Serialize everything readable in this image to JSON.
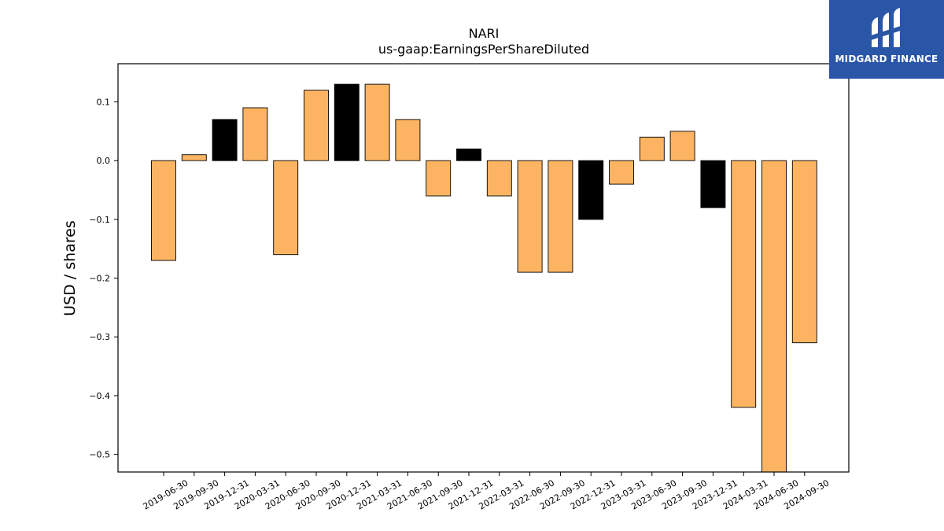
{
  "brand": {
    "name": "MIDGARD FINANCE",
    "logo_bg": "#2a56a8",
    "icon": "midgard-logo-icon"
  },
  "chart_data": {
    "type": "bar",
    "title": "NARI",
    "subtitle": "us-gaap:EarningsPerShareDiluted",
    "xlabel": "",
    "ylabel": "USD / shares",
    "ylim": [
      -0.53,
      0.165
    ],
    "yticks": [
      0.1,
      0.0,
      -0.1,
      -0.2,
      -0.3,
      -0.4,
      -0.5
    ],
    "ytick_labels": [
      "0.1",
      "0.0",
      "−0.1",
      "−0.2",
      "−0.3",
      "−0.4",
      "−0.5"
    ],
    "grid": false,
    "legend": "none",
    "colors": {
      "quarter": "#fdb462",
      "year_end": "#000000",
      "edge": "#000000"
    },
    "categories": [
      "2019-06-30",
      "2019-09-30",
      "2019-12-31",
      "2020-03-31",
      "2020-06-30",
      "2020-09-30",
      "2020-12-31",
      "2021-03-31",
      "2021-06-30",
      "2021-09-30",
      "2021-12-31",
      "2022-03-31",
      "2022-06-30",
      "2022-09-30",
      "2022-12-31",
      "2023-03-31",
      "2023-06-30",
      "2023-09-30",
      "2023-12-31",
      "2024-03-31",
      "2024-06-30",
      "2024-09-30"
    ],
    "values": [
      -0.17,
      0.01,
      0.07,
      0.09,
      -0.16,
      0.12,
      0.13,
      0.13,
      0.07,
      -0.06,
      0.02,
      -0.06,
      -0.19,
      -0.19,
      -0.1,
      -0.04,
      0.04,
      0.05,
      -0.08,
      -0.42,
      -0.53,
      -0.31
    ],
    "highlight_year_end": [
      false,
      false,
      true,
      false,
      false,
      false,
      true,
      false,
      false,
      false,
      true,
      false,
      false,
      false,
      true,
      false,
      false,
      false,
      true,
      false,
      false,
      false
    ]
  }
}
